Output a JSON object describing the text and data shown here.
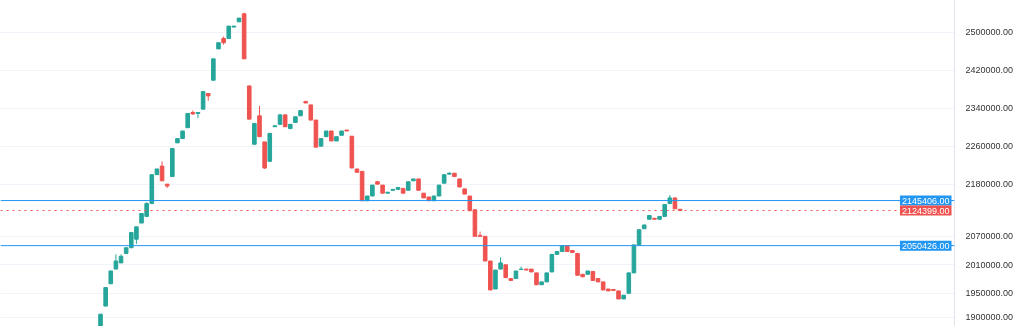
{
  "chart_data": {
    "type": "candlestick",
    "categories": [
      null,
      null,
      null,
      null,
      null,
      null,
      null,
      null,
      null,
      null,
      null,
      null,
      null,
      null,
      null,
      null,
      null,
      null,
      null,
      null,
      null,
      null,
      null,
      null,
      null,
      null,
      null,
      null,
      null,
      null,
      null,
      null,
      null,
      null,
      null,
      null,
      null,
      null,
      null,
      null,
      null,
      null,
      null,
      null,
      null,
      null,
      null,
      null,
      null,
      null,
      null,
      null,
      null,
      null,
      null,
      null,
      null,
      null,
      null,
      null,
      null,
      null,
      null,
      null,
      null,
      null,
      null,
      null,
      null,
      null,
      null,
      null,
      null,
      null,
      null,
      null,
      null,
      null,
      null,
      null,
      null,
      null,
      null,
      null,
      null,
      null,
      null,
      null,
      null,
      null,
      null,
      null,
      null,
      null,
      null,
      null,
      null,
      null,
      null,
      null,
      null,
      null,
      null,
      null,
      null,
      null,
      null,
      null,
      null,
      null,
      null,
      null,
      null,
      null,
      null,
      null,
      null,
      null,
      null,
      null,
      null,
      null,
      null,
      null,
      null,
      null,
      null,
      null,
      null,
      null,
      null,
      null,
      null,
      null,
      null,
      null,
      null,
      null,
      null,
      null,
      null,
      null,
      null,
      null,
      null,
      null,
      null,
      null,
      null,
      null,
      null,
      null,
      null,
      null,
      null,
      null,
      null,
      null,
      null,
      null,
      null,
      null,
      null,
      null,
      null,
      null,
      null,
      null,
      null,
      null,
      null,
      null,
      null,
      null,
      null,
      null,
      null,
      null,
      null,
      null,
      null,
      null,
      null,
      null,
      null,
      null
    ],
    "ohlc": [
      null,
      null,
      null,
      null,
      null,
      null,
      null,
      null,
      null,
      null,
      null,
      null,
      null,
      null,
      null,
      null,
      null,
      null,
      null,
      [
        1881000,
        1906000,
        1881000,
        1906000
      ],
      [
        1923000,
        1962000,
        1923000,
        1962000
      ],
      [
        1970000,
        1997000,
        1970000,
        1997000
      ],
      [
        2001000,
        2032000,
        2001000,
        2018000
      ],
      [
        2014000,
        2032000,
        2014000,
        2028000
      ],
      [
        2034000,
        2046000,
        2034000,
        2046000
      ],
      [
        2046000,
        2078000,
        2046000,
        2078000
      ],
      [
        2064000,
        2090000,
        2054000,
        2090000
      ],
      [
        2098000,
        2118000,
        2098000,
        2118000
      ],
      [
        2112000,
        2142000,
        2112000,
        2139000
      ],
      [
        2139000,
        2201000,
        2139000,
        2200000
      ],
      [
        2200000,
        2212000,
        2200000,
        2212000
      ],
      [
        2218000,
        2228000,
        2187000,
        2187000
      ],
      [
        2180000,
        2180000,
        2172000,
        2176000
      ],
      [
        2196000,
        2255000,
        2196000,
        2255000
      ],
      [
        2267000,
        2276000,
        2267000,
        2276000
      ],
      [
        2276000,
        2292000,
        2276000,
        2292000
      ],
      [
        2299000,
        2329000,
        2299000,
        2329000
      ],
      [
        2331000,
        2335000,
        2326000,
        2328000
      ],
      [
        2329000,
        2331000,
        2319000,
        2331000
      ],
      [
        2338000,
        2375000,
        2338000,
        2375000
      ],
      [
        2371000,
        2371000,
        2356000,
        2366000
      ],
      [
        2399000,
        2444000,
        2399000,
        2444000
      ],
      [
        2465000,
        2478000,
        2465000,
        2478000
      ],
      [
        2487000,
        2491000,
        2474000,
        2478000
      ],
      [
        2487000,
        2513000,
        2487000,
        2513000
      ],
      [
        2511000,
        2513000,
        2511000,
        2513000
      ],
      [
        2522000,
        2530000,
        2522000,
        2530000
      ],
      [
        2539000,
        2541000,
        2444000,
        2444000
      ],
      [
        2387000,
        2387000,
        2317000,
        2317000
      ],
      [
        2264000,
        2308000,
        2264000,
        2308000
      ],
      [
        2324000,
        2345000,
        2280000,
        2280000
      ],
      [
        2269000,
        2269000,
        2212000,
        2214000
      ],
      [
        2228000,
        2287000,
        2228000,
        2287000
      ],
      [
        2301000,
        2303000,
        2301000,
        2303000
      ],
      [
        2306000,
        2326000,
        2306000,
        2326000
      ],
      [
        2326000,
        2326000,
        2301000,
        2301000
      ],
      [
        2297000,
        2306000,
        2297000,
        2306000
      ],
      [
        2310000,
        2322000,
        2310000,
        2322000
      ],
      [
        2324000,
        2335000,
        2324000,
        2335000
      ],
      [
        2354000,
        2356000,
        2351000,
        2351000
      ],
      [
        2347000,
        2347000,
        2315000,
        2315000
      ],
      [
        2315000,
        2315000,
        2258000,
        2258000
      ],
      [
        2260000,
        2276000,
        2260000,
        2276000
      ],
      [
        2280000,
        2292000,
        2280000,
        2292000
      ],
      [
        2292000,
        2292000,
        2271000,
        2271000
      ],
      [
        2271000,
        2280000,
        2271000,
        2280000
      ],
      [
        2283000,
        2292000,
        2283000,
        2292000
      ],
      [
        2294000,
        2294000,
        2292000,
        2292000
      ],
      [
        2281000,
        2281000,
        2214000,
        2214000
      ],
      [
        2212000,
        2212000,
        2205000,
        2205000
      ],
      [
        2207000,
        2207000,
        2145000,
        2145000
      ],
      [
        2145000,
        2155000,
        2145000,
        2155000
      ],
      [
        2155000,
        2178000,
        2155000,
        2178000
      ],
      [
        2185000,
        2187000,
        2180000,
        2180000
      ],
      [
        2178000,
        2178000,
        2161000,
        2161000
      ],
      [
        2161000,
        2163000,
        2161000,
        2163000
      ],
      [
        2167000,
        2169000,
        2167000,
        2169000
      ],
      [
        2169000,
        2173000,
        2169000,
        2173000
      ],
      [
        2171000,
        2171000,
        2161000,
        2161000
      ],
      [
        2167000,
        2185000,
        2167000,
        2185000
      ],
      [
        2187000,
        2191000,
        2187000,
        2191000
      ],
      [
        2191000,
        2191000,
        2167000,
        2167000
      ],
      [
        2161000,
        2161000,
        2151000,
        2151000
      ],
      [
        2153000,
        2153000,
        2145000,
        2145000
      ],
      [
        2145000,
        2155000,
        2145000,
        2155000
      ],
      [
        2155000,
        2178000,
        2155000,
        2178000
      ],
      [
        2182000,
        2200000,
        2182000,
        2200000
      ],
      [
        2201000,
        2205000,
        2201000,
        2203000
      ],
      [
        2203000,
        2203000,
        2196000,
        2196000
      ],
      [
        2191000,
        2191000,
        2174000,
        2174000
      ],
      [
        2170000,
        2170000,
        2159000,
        2159000
      ],
      [
        2155000,
        2155000,
        2124000,
        2124000
      ],
      [
        2126000,
        2126000,
        2070000,
        2070000
      ],
      [
        2072000,
        2080000,
        2070000,
        2070000
      ],
      [
        2070000,
        2070000,
        2018000,
        2018000
      ],
      [
        2018000,
        2018000,
        1957000,
        1957000
      ],
      [
        1959000,
        1999000,
        1959000,
        1999000
      ],
      [
        2001000,
        2026000,
        2001000,
        2014000
      ],
      [
        2010000,
        2010000,
        1983000,
        1983000
      ],
      [
        1981000,
        1981000,
        1977000,
        1977000
      ],
      [
        1981000,
        1997000,
        1981000,
        1997000
      ],
      [
        2000000,
        2006000,
        2000000,
        2001000
      ],
      [
        2001000,
        2001000,
        1999000,
        1999000
      ],
      [
        2001000,
        2001000,
        1995000,
        1995000
      ],
      [
        1993000,
        1993000,
        1968000,
        1968000
      ],
      [
        1968000,
        1974000,
        1968000,
        1974000
      ],
      [
        1974000,
        1993000,
        1974000,
        1993000
      ],
      [
        1995000,
        2032000,
        1995000,
        2032000
      ],
      [
        2032000,
        2038000,
        2032000,
        2038000
      ],
      [
        2038000,
        2050000,
        2038000,
        2050000
      ],
      [
        2050000,
        2050000,
        2038000,
        2038000
      ],
      [
        2040000,
        2040000,
        2036000,
        2036000
      ],
      [
        2034000,
        2034000,
        1988000,
        1988000
      ],
      [
        1990000,
        1990000,
        1983000,
        1985000
      ],
      [
        1990000,
        1997000,
        1990000,
        1997000
      ],
      [
        1996000,
        1996000,
        1977000,
        1977000
      ],
      [
        1981000,
        1981000,
        1974000,
        1974000
      ],
      [
        1974000,
        1974000,
        1957000,
        1957000
      ],
      [
        1959000,
        1959000,
        1955000,
        1955000
      ],
      [
        1958000,
        1958000,
        1956000,
        1956000
      ],
      [
        1955000,
        1955000,
        1938000,
        1938000
      ],
      [
        1938000,
        1946000,
        1938000,
        1946000
      ],
      [
        1950000,
        1993000,
        1950000,
        1993000
      ],
      [
        1993000,
        2052000,
        1993000,
        2052000
      ],
      [
        2052000,
        2084000,
        2052000,
        2084000
      ],
      [
        2086000,
        2094000,
        2086000,
        2094000
      ],
      [
        2106000,
        2114000,
        2106000,
        2114000
      ],
      [
        2108000,
        2108000,
        2106000,
        2106000
      ],
      [
        2106000,
        2112000,
        2106000,
        2112000
      ],
      [
        2112000,
        2137000,
        2112000,
        2137000
      ],
      [
        2139000,
        2157000,
        2139000,
        2151000
      ],
      [
        2151000,
        2151000,
        2128000,
        2128000
      ],
      [
        2127000,
        2127000,
        2124399,
        2124399
      ],
      null,
      null,
      null,
      null,
      null,
      null,
      null,
      null,
      null,
      null,
      null,
      null,
      null,
      null,
      null,
      null,
      null,
      null,
      null,
      null,
      null,
      null,
      null,
      null,
      null,
      null,
      null,
      null,
      null,
      null,
      null,
      null,
      null,
      null,
      null,
      null,
      null,
      null,
      null,
      null,
      null,
      null,
      null,
      null,
      null,
      null,
      null,
      null,
      null,
      null,
      null,
      null,
      null
    ],
    "ylim": [
      1880000,
      2567000
    ],
    "yticks": [
      {
        "value": 1900000,
        "label": "1900000.00"
      },
      {
        "value": 1950000,
        "label": "1950000.00"
      },
      {
        "value": 2010000,
        "label": "2010000.00"
      },
      {
        "value": 2070000,
        "label": "2070000.00"
      },
      {
        "value": 2180000,
        "label": "2180000.00"
      },
      {
        "value": 2260000,
        "label": "2260000.00"
      },
      {
        "value": 2340000,
        "label": "2340000.00"
      },
      {
        "value": 2420000,
        "label": "2420000.00"
      },
      {
        "value": 2500000,
        "label": "2500000.00"
      }
    ],
    "ref_lines": [
      {
        "axis": "y",
        "value": 2145406,
        "label": "2145406.00",
        "color": "#2196f3",
        "line_style": "solid"
      },
      {
        "axis": "y",
        "value": 2124399,
        "label": "2124399.00",
        "color": "#ef5350",
        "line_style": "dotted"
      },
      {
        "axis": "y",
        "value": 2050426,
        "label": "2050426.00",
        "color": "#2196f3",
        "line_style": "solid"
      }
    ],
    "grid": "y",
    "tick_labels": "y"
  }
}
